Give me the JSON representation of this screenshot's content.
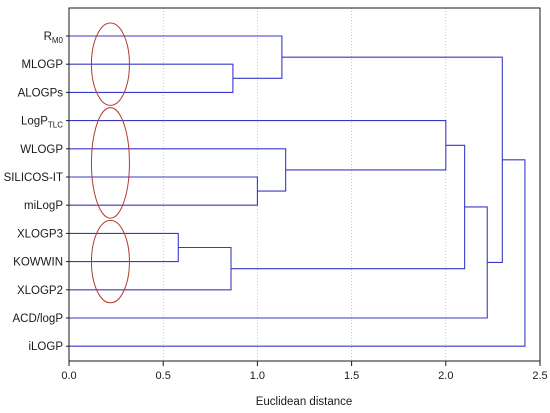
{
  "chart_data": {
    "type": "dendrogram",
    "title": "",
    "xlabel": "Euclidean distance",
    "ylabel": "",
    "xlim": [
      0.0,
      2.5
    ],
    "xticks": [
      "0.0",
      "0.5",
      "1.0",
      "1.5",
      "2.0",
      "2.5"
    ],
    "xtick_values": [
      0.0,
      0.5,
      1.0,
      1.5,
      2.0,
      2.5
    ],
    "grid": "vertical dashed",
    "leaves": [
      {
        "id": "RM0",
        "label": "R",
        "subscript": "M0"
      },
      {
        "id": "MLOGP",
        "label": "MLOGP",
        "subscript": ""
      },
      {
        "id": "ALOGPs",
        "label": "ALOGPs",
        "subscript": ""
      },
      {
        "id": "LogPTLC",
        "label": "LogP",
        "subscript": "TLC"
      },
      {
        "id": "WLOGP",
        "label": "WLOGP",
        "subscript": ""
      },
      {
        "id": "SILICOS-IT",
        "label": "SILICOS-IT",
        "subscript": ""
      },
      {
        "id": "miLogP",
        "label": "miLogP",
        "subscript": ""
      },
      {
        "id": "XLOGP3",
        "label": "XLOGP3",
        "subscript": ""
      },
      {
        "id": "KOWWIN",
        "label": "KOWWIN",
        "subscript": ""
      },
      {
        "id": "XLOGP2",
        "label": "XLOGP2",
        "subscript": ""
      },
      {
        "id": "ACD/logP",
        "label": "ACD/logP",
        "subscript": ""
      },
      {
        "id": "iLOGP",
        "label": "iLOGP",
        "subscript": ""
      }
    ],
    "merges": [
      {
        "id": "m1",
        "left": "XLOGP3",
        "right": "KOWWIN",
        "distance": 0.58
      },
      {
        "id": "m2",
        "left": "m1",
        "right": "XLOGP2",
        "distance": 0.86
      },
      {
        "id": "m3",
        "left": "MLOGP",
        "right": "ALOGPs",
        "distance": 0.87
      },
      {
        "id": "m4",
        "left": "SILICOS-IT",
        "right": "miLogP",
        "distance": 1.0
      },
      {
        "id": "m5",
        "left": "RM0",
        "right": "m3",
        "distance": 1.13
      },
      {
        "id": "m6",
        "left": "WLOGP",
        "right": "m4",
        "distance": 1.15
      },
      {
        "id": "m7",
        "left": "LogPTLC",
        "right": "m6",
        "distance": 2.0
      },
      {
        "id": "m8",
        "left": "m7",
        "right": "m2",
        "distance": 2.1
      },
      {
        "id": "m9",
        "left": "m8",
        "right": "ACD/logP",
        "distance": 2.22
      },
      {
        "id": "m10",
        "left": "m5",
        "right": "m9",
        "distance": 2.3
      },
      {
        "id": "m11",
        "left": "m10",
        "right": "iLOGP",
        "distance": 2.42
      }
    ],
    "group_markers": [
      {
        "label": "",
        "leaves": [
          "RM0",
          "MLOGP",
          "ALOGPs"
        ],
        "distance": 0.22
      },
      {
        "label": "",
        "leaves": [
          "LogPTLC",
          "WLOGP",
          "SILICOS-IT",
          "miLogP"
        ],
        "distance": 0.22
      },
      {
        "label": "",
        "leaves": [
          "XLOGP3",
          "KOWWIN",
          "XLOGP2"
        ],
        "distance": 0.22
      }
    ],
    "colors": {
      "line": "#3a3ac8",
      "grid": "#9aa0b4",
      "ellipse": "#b03a2e",
      "frame": "#1a1a1a",
      "text": "#1a1a1a"
    }
  }
}
